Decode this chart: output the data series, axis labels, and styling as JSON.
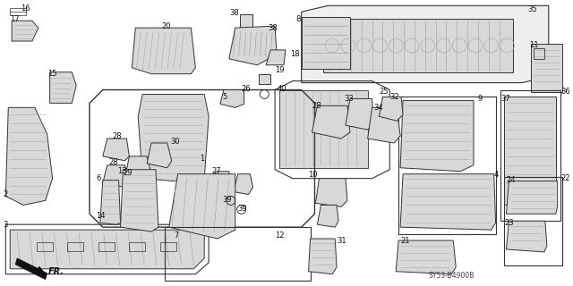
{
  "bg_color": "#ffffff",
  "diagram_code": "SY53-B4900B",
  "fig_width": 6.4,
  "fig_height": 3.2,
  "dpi": 100,
  "line_color": "#333333",
  "gray_fill": "#d8d8d8",
  "light_fill": "#eeeeee",
  "label_fontsize": 6.0
}
